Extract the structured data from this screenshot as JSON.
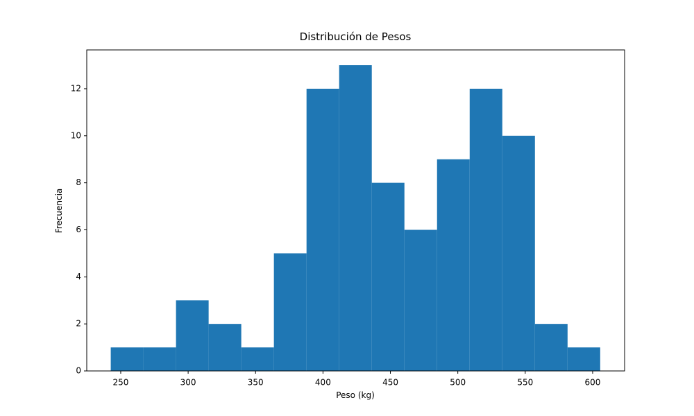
{
  "chart_data": {
    "type": "histogram",
    "title": "Distribución de Pesos",
    "x_label": "Peso (kg)",
    "y_label": "Frecuencia",
    "bins": [
      242.6,
      266.8,
      291.0,
      315.2,
      339.4,
      363.6,
      387.8,
      412.0,
      436.2,
      460.4,
      484.6,
      508.8,
      533.0,
      557.2,
      581.4,
      605.6
    ],
    "values": [
      1,
      1,
      3,
      2,
      1,
      5,
      12,
      13,
      8,
      6,
      9,
      12,
      10,
      2,
      1
    ],
    "color": "#1f77b4",
    "xlim": [
      224.8,
      623.7
    ],
    "xticks": [
      250,
      300,
      350,
      400,
      450,
      500,
      550,
      600
    ],
    "ylim": [
      0,
      13.65
    ],
    "yticks": [
      0,
      2,
      4,
      6,
      8,
      10,
      12
    ]
  }
}
